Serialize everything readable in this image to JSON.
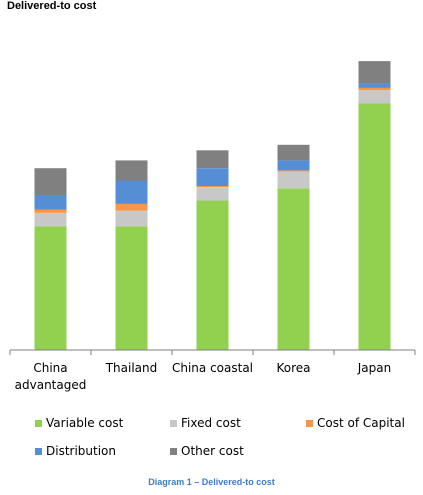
{
  "title": "Delivered-to cost",
  "caption": "Diagram 1 – Delivered-to cost",
  "colors": {
    "Variable cost": "#92d050",
    "Fixed cost": "#c8c8c8",
    "Cost of Capital": "#f79646",
    "Distribution": "#558ed5",
    "Other cost": "#808080"
  },
  "chart_data": {
    "type": "bar",
    "stacked": true,
    "title": "Delivered-to cost",
    "xlabel": "",
    "ylabel": "",
    "categories": [
      "China advantaged",
      "Thailand",
      "China coastal",
      "Korea",
      "Japan"
    ],
    "category_lines": [
      [
        "China",
        "advantaged"
      ],
      [
        "Thailand"
      ],
      [
        "China coastal"
      ],
      [
        "Korea"
      ],
      [
        "Japan"
      ]
    ],
    "series": [
      {
        "name": "Variable cost",
        "values": [
          111,
          111,
          134,
          145,
          221
        ]
      },
      {
        "name": "Fixed cost",
        "values": [
          12,
          14,
          12,
          15,
          12
        ]
      },
      {
        "name": "Cost of Capital",
        "values": [
          3,
          6,
          1,
          1,
          2
        ]
      },
      {
        "name": "Distribution",
        "values": [
          13,
          21,
          16,
          9,
          4
        ]
      },
      {
        "name": "Other cost",
        "values": [
          24,
          18,
          16,
          14,
          20
        ]
      }
    ],
    "ylim": [
      0,
      260
    ],
    "grid": false,
    "legend_position": "bottom"
  }
}
